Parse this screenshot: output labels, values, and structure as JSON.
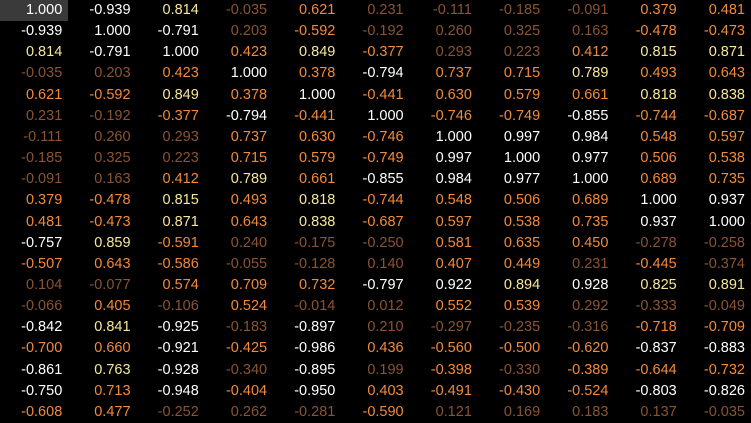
{
  "table": {
    "rows": [
      [
        "1.000",
        "-0.939",
        "0.814",
        "-0.035",
        "0.621",
        "0.231",
        "-0.111",
        "-0.185",
        "-0.091",
        "0.379",
        "0.481"
      ],
      [
        "-0.939",
        "1.000",
        "-0.791",
        "0.203",
        "-0.592",
        "-0.192",
        "0.260",
        "0.325",
        "0.163",
        "-0.478",
        "-0.473"
      ],
      [
        "0.814",
        "-0.791",
        "1.000",
        "0.423",
        "0.849",
        "-0.377",
        "0.293",
        "0.223",
        "0.412",
        "0.815",
        "0.871"
      ],
      [
        "-0.035",
        "0.203",
        "0.423",
        "1.000",
        "0.378",
        "-0.794",
        "0.737",
        "0.715",
        "0.789",
        "0.493",
        "0.643"
      ],
      [
        "0.621",
        "-0.592",
        "0.849",
        "0.378",
        "1.000",
        "-0.441",
        "0.630",
        "0.579",
        "0.661",
        "0.818",
        "0.838"
      ],
      [
        "0.231",
        "-0.192",
        "-0.377",
        "-0.794",
        "-0.441",
        "1.000",
        "-0.746",
        "-0.749",
        "-0.855",
        "-0.744",
        "-0.687"
      ],
      [
        "-0.111",
        "0.260",
        "0.293",
        "0.737",
        "0.630",
        "-0.746",
        "1.000",
        "0.997",
        "0.984",
        "0.548",
        "0.597"
      ],
      [
        "-0.185",
        "0.325",
        "0.223",
        "0.715",
        "0.579",
        "-0.749",
        "0.997",
        "1.000",
        "0.977",
        "0.506",
        "0.538"
      ],
      [
        "-0.091",
        "0.163",
        "0.412",
        "0.789",
        "0.661",
        "-0.855",
        "0.984",
        "0.977",
        "1.000",
        "0.689",
        "0.735"
      ],
      [
        "0.379",
        "-0.478",
        "0.815",
        "0.493",
        "0.818",
        "-0.744",
        "0.548",
        "0.506",
        "0.689",
        "1.000",
        "0.937"
      ],
      [
        "0.481",
        "-0.473",
        "0.871",
        "0.643",
        "0.838",
        "-0.687",
        "0.597",
        "0.538",
        "0.735",
        "0.937",
        "1.000"
      ],
      [
        "-0.757",
        "0.859",
        "-0.591",
        "0.240",
        "-0.175",
        "-0.250",
        "0.581",
        "0.635",
        "0.450",
        "-0.278",
        "-0.258"
      ],
      [
        "-0.507",
        "0.643",
        "-0.586",
        "-0.055",
        "-0.128",
        "0.140",
        "0.407",
        "0.449",
        "0.231",
        "-0.445",
        "-0.374"
      ],
      [
        "0.104",
        "-0.077",
        "0.574",
        "0.709",
        "0.732",
        "-0.797",
        "0.922",
        "0.894",
        "0.928",
        "0.825",
        "0.891"
      ],
      [
        "-0.066",
        "0.405",
        "-0.106",
        "0.524",
        "-0.014",
        "0.012",
        "0.552",
        "0.539",
        "0.292",
        "-0.333",
        "-0.049"
      ],
      [
        "-0.842",
        "0.841",
        "-0.925",
        "-0.183",
        "-0.897",
        "0.210",
        "-0.297",
        "-0.235",
        "-0.316",
        "-0.718",
        "-0.709"
      ],
      [
        "-0.700",
        "0.660",
        "-0.921",
        "-0.425",
        "-0.986",
        "0.436",
        "-0.560",
        "-0.500",
        "-0.620",
        "-0.837",
        "-0.883"
      ],
      [
        "-0.861",
        "0.763",
        "-0.928",
        "-0.340",
        "-0.895",
        "0.199",
        "-0.398",
        "-0.330",
        "-0.389",
        "-0.644",
        "-0.732"
      ],
      [
        "-0.750",
        "0.713",
        "-0.948",
        "-0.404",
        "-0.950",
        "0.403",
        "-0.491",
        "-0.430",
        "-0.524",
        "-0.803",
        "-0.826"
      ],
      [
        "-0.608",
        "0.477",
        "-0.252",
        "0.262",
        "-0.281",
        "-0.590",
        "0.121",
        "0.169",
        "0.183",
        "0.137",
        "-0.035"
      ]
    ]
  }
}
